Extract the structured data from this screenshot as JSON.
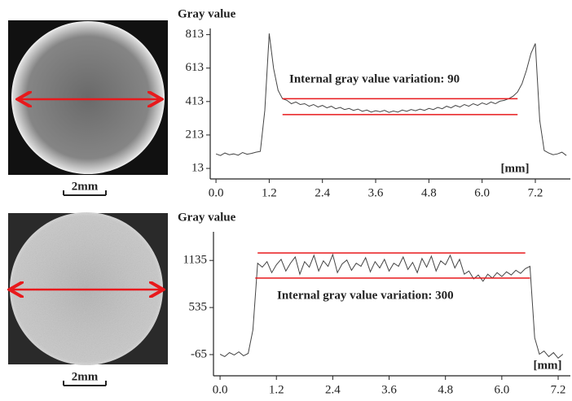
{
  "chart_data": [
    {
      "type": "line",
      "y_label": "Gray value",
      "x_label": "[mm]",
      "annotation": "Internal gray value variation: 90",
      "color": "#444444",
      "ref_color": "#e8191c",
      "xlim": [
        -0.13,
        7.99
      ],
      "ylim": [
        -50,
        850
      ],
      "xticks": [
        {
          "value": 0,
          "label": "0.0"
        },
        1.2,
        2.4,
        3.6,
        4.8,
        {
          "value": 6,
          "label": "6.0"
        },
        7.2
      ],
      "yticks": [
        13,
        213,
        413,
        613,
        813
      ],
      "x": [
        0.0,
        0.1,
        0.2,
        0.3,
        0.4,
        0.5,
        0.6,
        0.7,
        0.8,
        0.9,
        1.0,
        1.1,
        1.2,
        1.3,
        1.4,
        1.5,
        1.6,
        1.7,
        1.8,
        1.9,
        2.0,
        2.1,
        2.2,
        2.3,
        2.4,
        2.5,
        2.6,
        2.7,
        2.8,
        2.9,
        3.0,
        3.1,
        3.2,
        3.3,
        3.4,
        3.5,
        3.6,
        3.7,
        3.8,
        3.9,
        4.0,
        4.1,
        4.2,
        4.3,
        4.4,
        4.5,
        4.6,
        4.7,
        4.8,
        4.9,
        5.0,
        5.1,
        5.2,
        5.3,
        5.4,
        5.5,
        5.6,
        5.7,
        5.8,
        5.9,
        6.0,
        6.1,
        6.2,
        6.3,
        6.4,
        6.5,
        6.6,
        6.7,
        6.8,
        6.9,
        7.0,
        7.1,
        7.2,
        7.3,
        7.4,
        7.5,
        7.6,
        7.7,
        7.8,
        7.9
      ],
      "values": [
        100,
        90,
        105,
        95,
        100,
        92,
        108,
        98,
        103,
        110,
        115,
        360,
        820,
        610,
        480,
        430,
        420,
        400,
        410,
        395,
        400,
        385,
        395,
        380,
        390,
        375,
        385,
        370,
        378,
        365,
        372,
        360,
        368,
        355,
        362,
        350,
        358,
        352,
        360,
        348,
        356,
        350,
        362,
        355,
        365,
        358,
        368,
        360,
        372,
        365,
        378,
        370,
        385,
        375,
        390,
        380,
        395,
        385,
        400,
        390,
        405,
        395,
        410,
        400,
        415,
        420,
        430,
        445,
        470,
        520,
        600,
        700,
        760,
        300,
        120,
        105,
        95,
        100,
        110,
        90
      ],
      "ref_lines": [
        {
          "y": 430,
          "x": [
            1.5,
            6.8
          ]
        },
        {
          "y": 335,
          "x": [
            1.5,
            6.8
          ]
        }
      ]
    },
    {
      "type": "line",
      "y_label": "Gray value",
      "x_label": "[mm]",
      "annotation": "Internal gray value variation: 300",
      "color": "#444444",
      "ref_color": "#e8191c",
      "xlim": [
        -0.14,
        7.46
      ],
      "ylim": [
        -335,
        1500
      ],
      "xticks": [
        {
          "value": 0,
          "label": "0.0"
        },
        1.2,
        2.4,
        3.6,
        4.8,
        {
          "value": 6,
          "label": "6.0"
        },
        7.2
      ],
      "yticks": [
        -65,
        535,
        1135
      ],
      "x": [
        0.0,
        0.1,
        0.2,
        0.3,
        0.4,
        0.5,
        0.6,
        0.7,
        0.8,
        0.9,
        1.0,
        1.1,
        1.2,
        1.3,
        1.4,
        1.5,
        1.6,
        1.7,
        1.8,
        1.9,
        2.0,
        2.1,
        2.2,
        2.3,
        2.4,
        2.5,
        2.6,
        2.7,
        2.8,
        2.9,
        3.0,
        3.1,
        3.2,
        3.3,
        3.4,
        3.5,
        3.6,
        3.7,
        3.8,
        3.9,
        4.0,
        4.1,
        4.2,
        4.3,
        4.4,
        4.5,
        4.6,
        4.7,
        4.8,
        4.9,
        5.0,
        5.1,
        5.2,
        5.3,
        5.4,
        5.5,
        5.6,
        5.7,
        5.8,
        5.9,
        6.0,
        6.1,
        6.2,
        6.3,
        6.4,
        6.5,
        6.6,
        6.7,
        6.8,
        6.9,
        7.0,
        7.1,
        7.2,
        7.3
      ],
      "values": [
        -60,
        -90,
        -40,
        -70,
        -30,
        -80,
        -50,
        250,
        1100,
        1050,
        1120,
        980,
        1080,
        1150,
        1000,
        1100,
        1180,
        960,
        1120,
        1050,
        1200,
        1000,
        1130,
        1060,
        1210,
        980,
        1090,
        1140,
        1010,
        1100,
        1060,
        1170,
        990,
        1120,
        1040,
        1150,
        1000,
        1100,
        1060,
        1180,
        1020,
        1110,
        980,
        1160,
        1050,
        1190,
        1000,
        1130,
        1080,
        1200,
        1040,
        1150,
        960,
        1000,
        900,
        950,
        870,
        960,
        910,
        980,
        930,
        990,
        950,
        1010,
        970,
        1030,
        1060,
        150,
        -60,
        -20,
        -90,
        -40,
        -110,
        -60
      ],
      "ref_lines": [
        {
          "y": 1230,
          "x": [
            0.8,
            6.5
          ]
        },
        {
          "y": 910,
          "x": [
            0.75,
            6.6
          ]
        }
      ]
    }
  ],
  "images": [
    {
      "scale_bar": "2mm"
    },
    {
      "scale_bar": "2mm"
    }
  ]
}
